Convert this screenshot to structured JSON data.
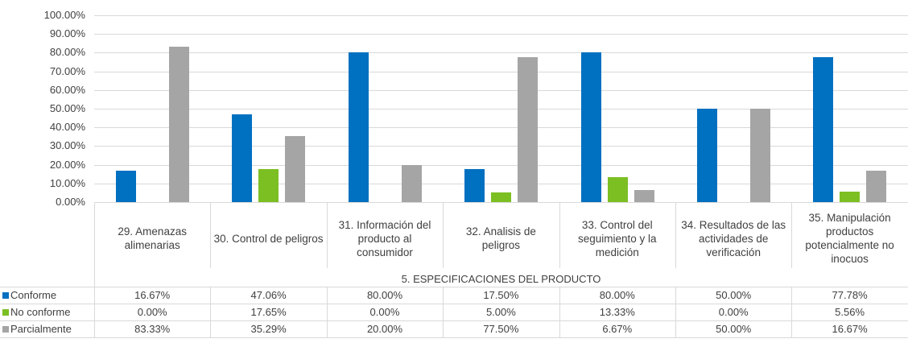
{
  "chart_data": {
    "type": "bar",
    "group_label": "5. ESPECIFICACIONES DEL PRODUCTO",
    "categories": [
      "29. Amenazas alimenarias",
      "30. Control de peligros",
      "31. Información del producto al consumidor",
      "32. Analisis de peligros",
      "33. Control del seguimiento y la medición",
      "34. Resultados de las actividades de verificación",
      "35. Manipulación productos potencialmente no inocuos"
    ],
    "series": [
      {
        "name": "Conforme",
        "color": "#0070c0",
        "values": [
          16.67,
          47.06,
          80,
          17.5,
          80,
          50,
          77.78
        ],
        "value_labels": [
          "16.67%",
          "47.06%",
          "80.00%",
          "17.50%",
          "80.00%",
          "50.00%",
          "77.78%"
        ]
      },
      {
        "name": "No conforme",
        "color": "#7cbf23",
        "values": [
          0,
          17.65,
          0,
          5,
          13.33,
          0,
          5.56
        ],
        "value_labels": [
          "0.00%",
          "17.65%",
          "0.00%",
          "5.00%",
          "13.33%",
          "0.00%",
          "5.56%"
        ]
      },
      {
        "name": "Parcialmente",
        "color": "#a5a5a5",
        "values": [
          83.33,
          35.29,
          20,
          77.5,
          6.67,
          50,
          16.67
        ],
        "value_labels": [
          "83.33%",
          "35.29%",
          "20.00%",
          "77.50%",
          "6.67%",
          "50.00%",
          "16.67%"
        ]
      }
    ],
    "ylim": [
      0,
      100
    ],
    "yticks": [
      {
        "value": 0,
        "label": "0.00%"
      },
      {
        "value": 10,
        "label": "10.00%"
      },
      {
        "value": 20,
        "label": "20.00%"
      },
      {
        "value": 30,
        "label": "30.00%"
      },
      {
        "value": 40,
        "label": "40.00%"
      },
      {
        "value": 50,
        "label": "50.00%"
      },
      {
        "value": 60,
        "label": "60.00%"
      },
      {
        "value": 70,
        "label": "70.00%"
      },
      {
        "value": 80,
        "label": "80.00%"
      },
      {
        "value": 90,
        "label": "90.00%"
      },
      {
        "value": 100,
        "label": "100.00%"
      }
    ],
    "grid": true
  }
}
